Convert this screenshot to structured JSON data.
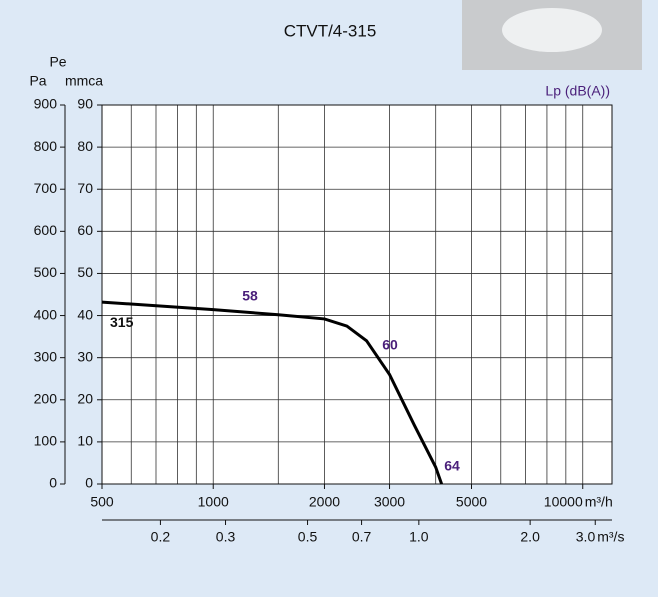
{
  "chart_data": {
    "type": "line",
    "title": "CTVT/4-315",
    "y_label": "Pe",
    "y_unit": "Pa",
    "y2_label": "mmca",
    "lp_label": "Lp (dB(A))",
    "x_unit": "m³/h",
    "x2_unit": "m³/s",
    "log_x": true,
    "grid": true,
    "xlim": [
      500,
      12000
    ],
    "xticks": [
      500,
      1000,
      2000,
      3000,
      5000,
      10000
    ],
    "xgrid": [
      600,
      700,
      800,
      900,
      1000,
      1500,
      2000,
      3000,
      4000,
      5000,
      6000,
      7000,
      8000,
      9000,
      10000
    ],
    "x2lim": [
      0.139,
      3.33
    ],
    "x2ticks": [
      0.2,
      0.3,
      0.5,
      0.7,
      {
        "value": 1,
        "label": "1.0"
      },
      {
        "value": 2,
        "label": "2.0"
      },
      {
        "value": 3,
        "label": "3.0"
      }
    ],
    "ylim": [
      0,
      900
    ],
    "yticks": [
      0,
      100,
      200,
      300,
      400,
      500,
      600,
      700,
      800,
      900
    ],
    "y2lim": [
      0,
      90
    ],
    "y2ticks": [
      0,
      10,
      20,
      30,
      40,
      50,
      60,
      70,
      80,
      90
    ],
    "series": [
      {
        "name": "315",
        "color": "#000000",
        "x": [
          500,
          1000,
          1500,
          2000,
          2300,
          2600,
          3000,
          3500,
          4000,
          4150
        ],
        "values": [
          432,
          414,
          402,
          392,
          375,
          340,
          260,
          140,
          40,
          0
        ]
      }
    ],
    "annotations": [
      {
        "text": "58",
        "color": "#4a1f7a"
      },
      {
        "text": "60",
        "color": "#4a1f7a"
      },
      {
        "text": "64",
        "color": "#4a1f7a"
      }
    ]
  }
}
